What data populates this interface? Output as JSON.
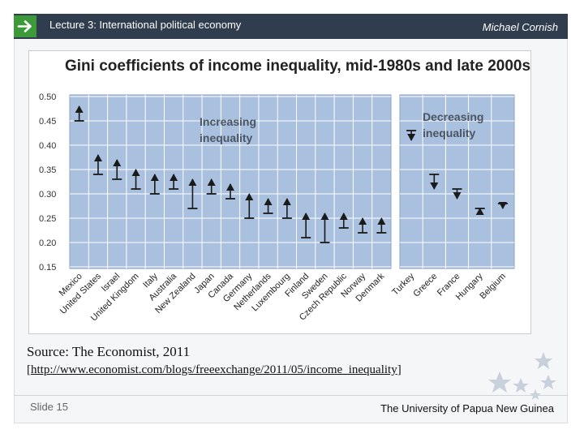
{
  "header": {
    "lecture_title": "Lecture 3: International political economy",
    "author": "Michael Cornish"
  },
  "source": {
    "line1": "Source:  The Economist, 2011",
    "bracket_open": "[",
    "url": "http://www.economist.com/blogs/freeexchange/2011/05/income_inequality",
    "bracket_close": "]"
  },
  "footer": {
    "slide_number": "Slide 15",
    "university": "The University of Papua New Guinea"
  },
  "colors": {
    "header_bg": "#2f3d4f",
    "accent_green": "#3d9a3a",
    "plot_bg": "#a9c0de",
    "marker": "#1a1a1a"
  },
  "chart_data": {
    "type": "range",
    "title": "Gini coefficients of income inequality, mid-1980s and late 2000s",
    "xlabel": "",
    "ylabel": "",
    "ylim": [
      0.15,
      0.5
    ],
    "yticks": [
      "0.50",
      "0.45",
      "0.40",
      "0.35",
      "0.30",
      "0.25",
      "0.20",
      "0.15"
    ],
    "grid": true,
    "panels": [
      {
        "label": "Increasing inequality",
        "label_lines": [
          "Increasing",
          "inequality"
        ],
        "categories": [
          "Mexico",
          "United States",
          "Israel",
          "United Kingdom",
          "Italy",
          "Australia",
          "New Zealand",
          "Japan",
          "Canada",
          "Germany",
          "Netherlands",
          "Luxembourg",
          "Finland",
          "Sweden",
          "Czech Republic",
          "Norway",
          "Denmark"
        ],
        "mid_1980s": [
          0.45,
          0.34,
          0.33,
          0.31,
          0.3,
          0.31,
          0.27,
          0.3,
          0.29,
          0.25,
          0.26,
          0.25,
          0.21,
          0.2,
          0.23,
          0.22,
          0.22
        ],
        "late_2000s": [
          0.48,
          0.38,
          0.37,
          0.35,
          0.34,
          0.34,
          0.33,
          0.33,
          0.32,
          0.3,
          0.29,
          0.29,
          0.26,
          0.26,
          0.26,
          0.25,
          0.25
        ]
      },
      {
        "label": "Decreasing inequality",
        "label_lines": [
          "Decreasing",
          "inequality"
        ],
        "categories": [
          "Turkey",
          "Greece",
          "France",
          "Hungary",
          "Belgium"
        ],
        "mid_1980s": [
          0.43,
          0.34,
          0.31,
          0.27,
          0.28
        ],
        "late_2000s": [
          0.41,
          0.31,
          0.29,
          0.27,
          0.27
        ]
      }
    ]
  }
}
